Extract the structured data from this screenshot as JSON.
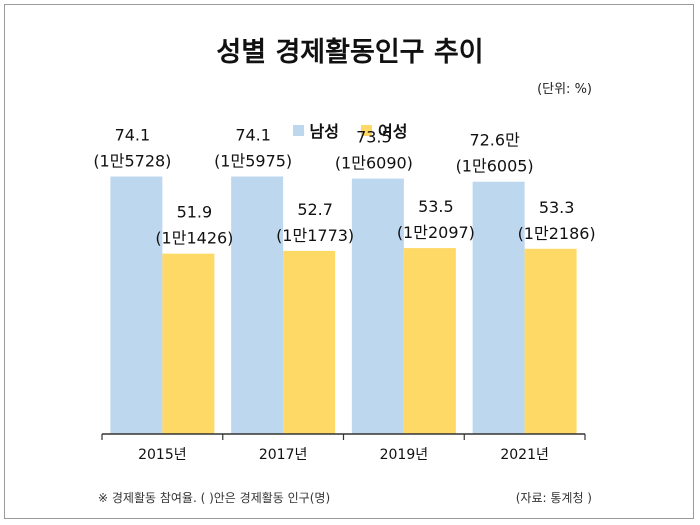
{
  "title": "성별 경제활동인구 추이",
  "unit_note": "(단위: %)",
  "footnote": "※ 경제활동 참여율. ( )안은 경제활동 인구(명)",
  "source": "(자료: 통계청 )",
  "colors": {
    "male": "#bdd7ee",
    "female": "#ffd966",
    "axis": "#333333"
  },
  "chart_data": {
    "type": "bar",
    "categories": [
      "2015년",
      "2017년",
      "2019년",
      "2021년"
    ],
    "ylim": [
      0,
      80
    ],
    "grid": false,
    "legend_position": "top-center",
    "series": [
      {
        "name": "남성",
        "values": [
          74.1,
          74.1,
          73.5,
          72.6
        ],
        "labels": [
          "74.1",
          "74.1",
          "73.5",
          "72.6만"
        ],
        "sublabels": [
          "(1만5728)",
          "(1만5975)",
          "(1만6090)",
          "(1만6005)"
        ]
      },
      {
        "name": "여성",
        "values": [
          51.9,
          52.7,
          53.5,
          53.3
        ],
        "labels": [
          "51.9",
          "52.7",
          "53.5",
          "53.3"
        ],
        "sublabels": [
          "(1만1426)",
          "(1만1773)",
          "(1만2097)",
          "(1만2186)"
        ]
      }
    ]
  }
}
